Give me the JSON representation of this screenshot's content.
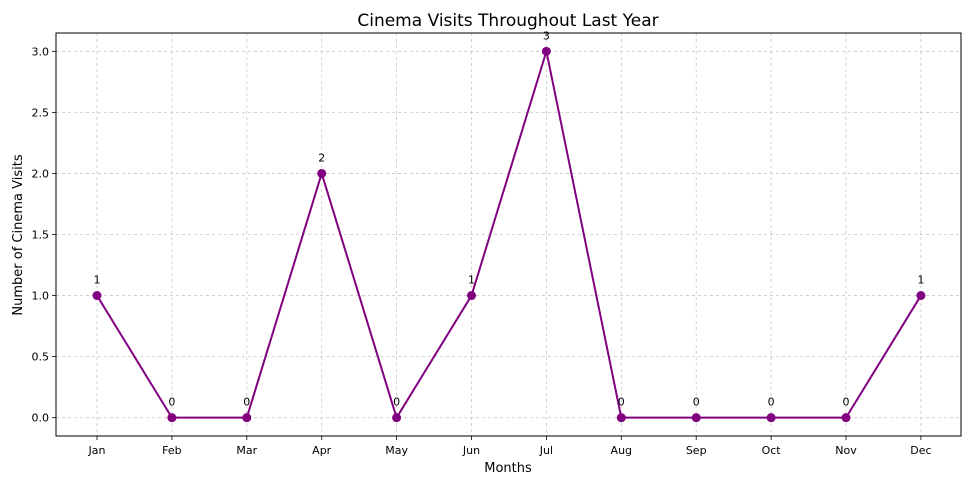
{
  "chart_data": {
    "type": "line",
    "title": "Cinema Visits Throughout Last Year",
    "xlabel": "Months",
    "ylabel": "Number of Cinema Visits",
    "categories": [
      "Jan",
      "Feb",
      "Mar",
      "Apr",
      "May",
      "Jun",
      "Jul",
      "Aug",
      "Sep",
      "Oct",
      "Nov",
      "Dec"
    ],
    "series": [
      {
        "values": [
          1,
          0,
          0,
          2,
          0,
          1,
          3,
          0,
          0,
          0,
          0,
          1
        ],
        "color": "#800080",
        "marker": "circle"
      }
    ],
    "data_labels": [
      "1",
      "0",
      "0",
      "2",
      "0",
      "1",
      "3",
      "0",
      "0",
      "0",
      "0",
      "1"
    ],
    "ylim": [
      -0.15,
      3.15
    ],
    "yticks": [
      0.0,
      0.5,
      1.0,
      1.5,
      2.0,
      2.5,
      3.0
    ],
    "ytick_labels": [
      "0.0",
      "0.5",
      "1.0",
      "1.5",
      "2.0",
      "2.5",
      "3.0"
    ],
    "grid": true
  }
}
